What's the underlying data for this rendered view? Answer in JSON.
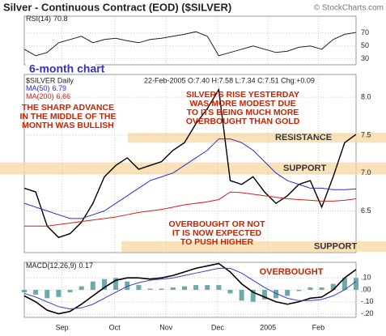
{
  "header": {
    "title": "Silver - Continuous Contract (EOD) ($SILVER)",
    "credit": "© StockCharts.com"
  },
  "chart_data": [
    {
      "type": "line",
      "subtitle": "6-month chart",
      "series": [
        {
          "name": "RSI(14)",
          "color": "#222222",
          "values": [
            45,
            35,
            40,
            55,
            60,
            65,
            55,
            60,
            62,
            58,
            55,
            60,
            62,
            65,
            68,
            72,
            65,
            35,
            40,
            45,
            50,
            45,
            40,
            42,
            48,
            50,
            45,
            60,
            68,
            70.8
          ]
        }
      ],
      "ylim": [
        21,
        96
      ],
      "yticks": [
        30,
        50,
        70
      ],
      "grid": true
    },
    {
      "type": "line",
      "title": "$SILVER Daily",
      "info": "22-Feb-2005 O:7.40 H:7.58 L:7.34 C:7.51 Chg:+0.09",
      "series": [
        {
          "name": "$SILVER",
          "color": "#000000",
          "values": [
            6.8,
            6.75,
            6.3,
            6.15,
            6.2,
            6.35,
            6.6,
            6.95,
            7.1,
            7.2,
            7.05,
            7.1,
            7.15,
            7.3,
            7.4,
            7.65,
            7.85,
            8.1,
            6.9,
            6.85,
            6.95,
            6.75,
            6.6,
            6.7,
            6.85,
            6.9,
            6.55,
            6.95,
            7.4,
            7.51
          ]
        },
        {
          "name": "MA(50)",
          "color": "#2b2bd0",
          "values": [
            6.6,
            6.55,
            6.5,
            6.45,
            6.4,
            6.4,
            6.45,
            6.5,
            6.6,
            6.7,
            6.8,
            6.9,
            6.95,
            7.0,
            7.1,
            7.2,
            7.3,
            7.45,
            7.45,
            7.4,
            7.3,
            7.15,
            7.0,
            6.9,
            6.85,
            6.8,
            6.8,
            6.78,
            6.78,
            6.79
          ]
        },
        {
          "name": "MA(200)",
          "color": "#d02020",
          "values": [
            6.3,
            6.3,
            6.3,
            6.32,
            6.34,
            6.36,
            6.38,
            6.4,
            6.42,
            6.45,
            6.48,
            6.5,
            6.52,
            6.55,
            6.58,
            6.6,
            6.62,
            6.65,
            6.75,
            6.74,
            6.72,
            6.7,
            6.68,
            6.66,
            6.65,
            6.64,
            6.63,
            6.63,
            6.64,
            6.66
          ]
        }
      ],
      "ylim": [
        5.95,
        8.3
      ],
      "yticks": [
        6.5,
        {
          "value": 7,
          "label": "7.0"
        },
        7.5,
        {
          "value": 8,
          "label": "8.0"
        }
      ],
      "grid": true,
      "bands": [
        {
          "label": "RESISTANCE",
          "range": [
            7.4,
            7.53
          ]
        },
        {
          "label": "SUPPORT",
          "range": [
            6.98,
            7.14
          ]
        },
        {
          "label": "SUPPORT",
          "range": [
            5.96,
            6.1
          ]
        }
      ],
      "annotations": [
        [
          "THE SHARP ADVANCE",
          "IN THE MIDDLE OF THE",
          "MONTH WAS BULLISH"
        ],
        [
          "SILVER'S RISE YESTERDAY",
          "WAS MORE MODEST DUE",
          "TO ITS BEING MUCH MORE",
          "OVERBOUGHT THAN GOLD"
        ],
        [
          "OVERBOUGHT OR NOT",
          "IT IS NOW EXPECTED",
          "TO PUSH HIGHER"
        ]
      ]
    },
    {
      "type": "macd",
      "annotation": "OVERBOUGHT",
      "series": [
        {
          "name": "MACD(12,26,9)",
          "color": "#000000",
          "values": [
            -0.05,
            -0.1,
            -0.17,
            -0.2,
            -0.18,
            -0.12,
            -0.05,
            0.02,
            0.08,
            0.1,
            0.1,
            0.09,
            0.1,
            0.12,
            0.15,
            0.18,
            0.2,
            0.22,
            0.15,
            0.05,
            -0.02,
            -0.06,
            -0.1,
            -0.12,
            -0.1,
            -0.07,
            -0.06,
            0.0,
            0.1,
            0.17
          ]
        },
        {
          "name": "Signal",
          "color": "#3a3ad0",
          "values": [
            -0.03,
            -0.06,
            -0.1,
            -0.14,
            -0.16,
            -0.15,
            -0.12,
            -0.07,
            -0.02,
            0.03,
            0.06,
            0.08,
            0.09,
            0.1,
            0.12,
            0.14,
            0.16,
            0.18,
            0.18,
            0.14,
            0.08,
            0.02,
            -0.03,
            -0.07,
            -0.09,
            -0.09,
            -0.08,
            -0.05,
            0.0,
            0.07
          ]
        },
        {
          "name": "Histogram",
          "color": "#6fa8a8",
          "values": [
            -0.02,
            -0.04,
            -0.07,
            -0.06,
            -0.02,
            0.03,
            0.07,
            0.09,
            0.1,
            0.07,
            0.04,
            0.01,
            0.01,
            0.02,
            0.03,
            0.04,
            0.04,
            0.04,
            -0.03,
            -0.09,
            -0.1,
            -0.08,
            -0.07,
            -0.05,
            -0.01,
            0.02,
            0.02,
            0.05,
            0.1,
            0.1
          ]
        }
      ],
      "ylim": [
        -0.23,
        0.23
      ],
      "yticks": [
        {
          "value": 0.1,
          "label": ".10"
        },
        {
          "value": 0,
          "label": ".00"
        },
        {
          "value": -0.1,
          "label": "-.10"
        },
        {
          "value": -0.2,
          "label": "-.20"
        }
      ],
      "grid": true,
      "xticks": [
        {
          "value": 3.3,
          "label": "Sep"
        },
        {
          "value": 7.9,
          "label": "Oct"
        },
        {
          "value": 12.4,
          "label": "Nov"
        },
        {
          "value": 16.9,
          "label": "Dec"
        },
        {
          "value": 21.3,
          "label": "2005"
        },
        {
          "value": 25.7,
          "label": "Feb"
        }
      ]
    }
  ]
}
